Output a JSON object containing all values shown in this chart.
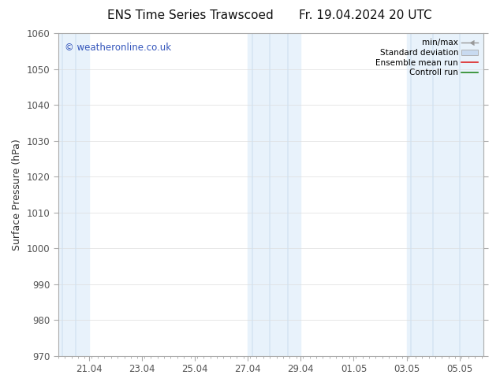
{
  "title_left": "ENS Time Series Trawscoed",
  "title_right": "Fr. 19.04.2024 20 UTC",
  "ylabel": "Surface Pressure (hPa)",
  "ylim": [
    970,
    1060
  ],
  "yticks": [
    970,
    980,
    990,
    1000,
    1010,
    1020,
    1030,
    1040,
    1050,
    1060
  ],
  "xlabel_ticks": [
    "21.04",
    "23.04",
    "25.04",
    "27.04",
    "29.04",
    "01.05",
    "03.05",
    "05.05"
  ],
  "watermark": "© weatheronline.co.uk",
  "background_color": "#ffffff",
  "plot_bg_color": "#ffffff",
  "shaded_color": "#daeaf8",
  "legend_labels": [
    "min/max",
    "Standard deviation",
    "Ensemble mean run",
    "Controll run"
  ],
  "title_fontsize": 11,
  "axis_fontsize": 9,
  "tick_fontsize": 8.5,
  "watermark_color": "#3355bb",
  "spine_color": "#aaaaaa",
  "tick_color": "#555555"
}
